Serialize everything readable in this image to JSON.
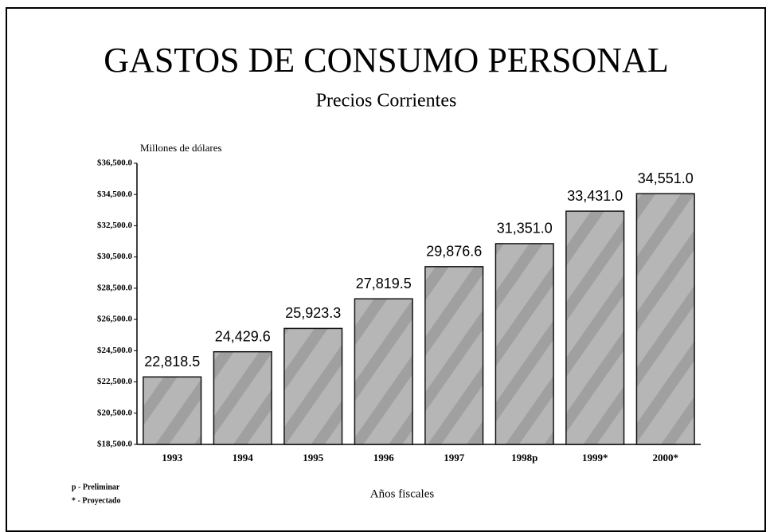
{
  "chart_data": {
    "type": "bar",
    "title": "GASTOS DE CONSUMO PERSONAL",
    "subtitle": "Precios Corrientes",
    "y_label": "Millones de dólares",
    "x_label": "Años fiscales",
    "notes": [
      "p - Preliminar",
      "* - Proyectado"
    ],
    "categories": [
      "1993",
      "1994",
      "1995",
      "1996",
      "1997",
      "1998p",
      "1999*",
      "2000*"
    ],
    "values": [
      22818.5,
      24429.6,
      25923.3,
      27819.5,
      29876.6,
      31351.0,
      33431.0,
      34551.0
    ],
    "value_labels": [
      "22,818.5",
      "24,429.6",
      "25,923.3",
      "27,819.5",
      "29,876.6",
      "31,351.0",
      "33,431.0",
      "34,551.0"
    ],
    "color": "#a9a9a9",
    "ylim": [
      18500,
      36500
    ],
    "yticks": [
      {
        "value": 18500,
        "label": "$18,500.0"
      },
      {
        "value": 20500,
        "label": "$20,500.0"
      },
      {
        "value": 22500,
        "label": "$22,500.0"
      },
      {
        "value": 24500,
        "label": "$24,500.0"
      },
      {
        "value": 26500,
        "label": "$26,500.0"
      },
      {
        "value": 28500,
        "label": "$28,500.0"
      },
      {
        "value": 30500,
        "label": "$30,500.0"
      },
      {
        "value": 32500,
        "label": "$32,500.0"
      },
      {
        "value": 34500,
        "label": "$34,500.0"
      },
      {
        "value": 36500,
        "label": "$36,500.0"
      }
    ],
    "grid": false
  }
}
